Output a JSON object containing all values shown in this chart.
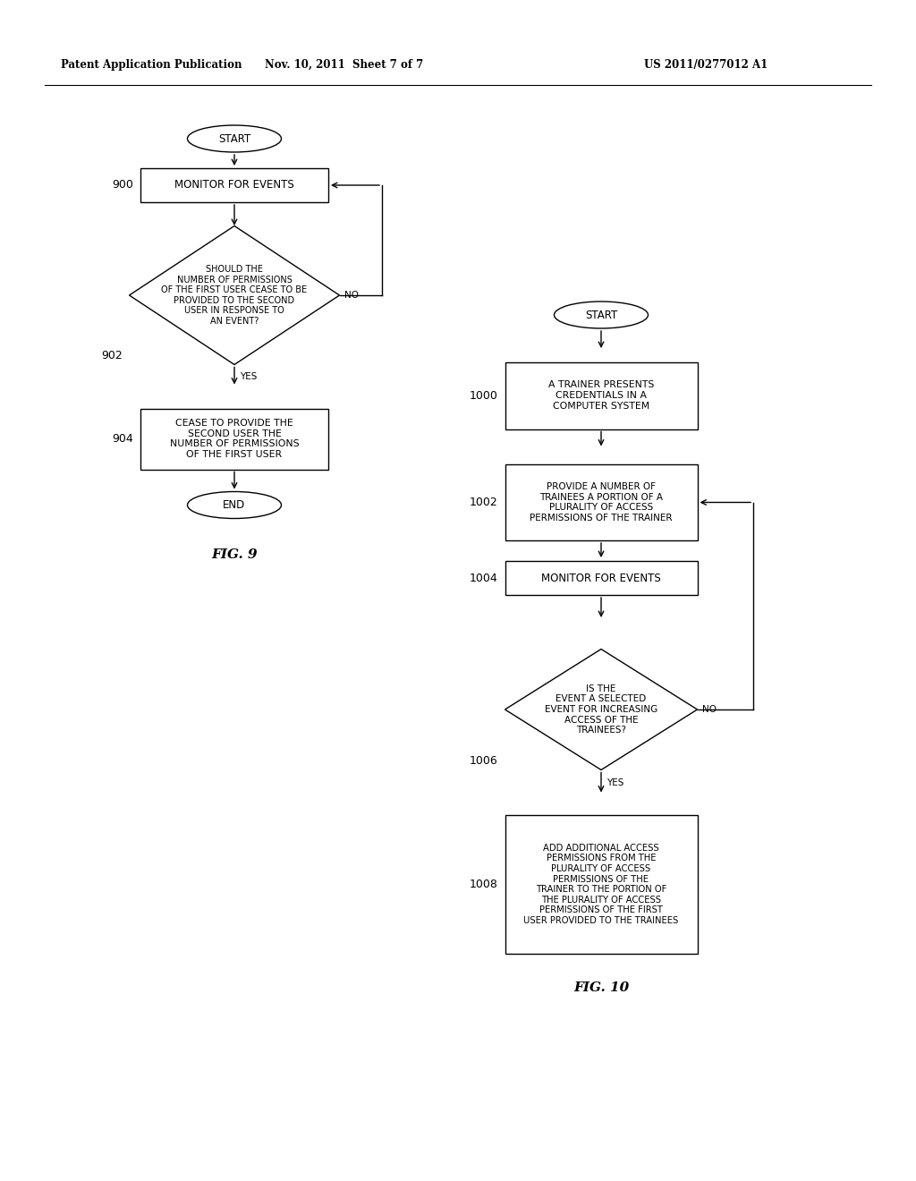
{
  "bg_color": "#ffffff",
  "header_left": "Patent Application Publication",
  "header_mid": "Nov. 10, 2011  Sheet 7 of 7",
  "header_right": "US 2011/0277012 A1",
  "fig9_title": "FIG. 9",
  "fig10_title": "FIG. 10"
}
